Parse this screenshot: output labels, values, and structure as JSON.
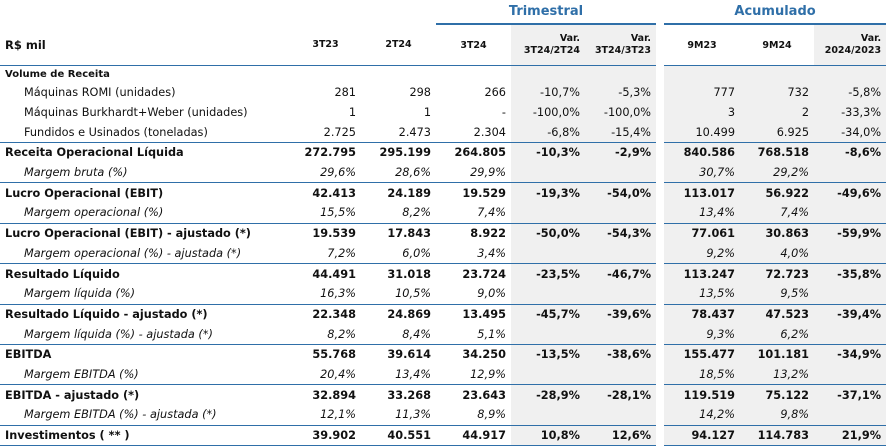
{
  "header": {
    "group_trimestral": "Trimestral",
    "group_acumulado": "Acumulado",
    "unit_label": "R$ mil",
    "columns": [
      "3T23",
      "2T24",
      "3T24",
      "Var. 3T24/2T24",
      "Var. 3T24/3T23",
      "9M23",
      "9M24",
      "Var. 2024/2023"
    ]
  },
  "section_title": "Volume de Receita",
  "rows": [
    {
      "label": "Máquinas ROMI (unidades)",
      "style": "normal",
      "values": [
        "281",
        "298",
        "266",
        "-10,7%",
        "-5,3%",
        "777",
        "732",
        "-5,8%"
      ]
    },
    {
      "label": "Máquinas Burkhardt+Weber (unidades)",
      "style": "normal",
      "values": [
        "1",
        "1",
        "-",
        "-100,0%",
        "-100,0%",
        "3",
        "2",
        "-33,3%"
      ]
    },
    {
      "label": "Fundidos e Usinados (toneladas)",
      "style": "normal",
      "values": [
        "2.725",
        "2.473",
        "2.304",
        "-6,8%",
        "-15,4%",
        "10.499",
        "6.925",
        "-34,0%"
      ]
    },
    {
      "label": "Receita Operacional Líquida",
      "style": "bold",
      "values": [
        "272.795",
        "295.199",
        "264.805",
        "-10,3%",
        "-2,9%",
        "840.586",
        "768.518",
        "-8,6%"
      ]
    },
    {
      "label": "Margem bruta (%)",
      "style": "italic",
      "values": [
        "29,6%",
        "28,6%",
        "29,9%",
        "",
        "",
        "30,7%",
        "29,2%",
        ""
      ]
    },
    {
      "label": "Lucro Operacional (EBIT)",
      "style": "bold",
      "values": [
        "42.413",
        "24.189",
        "19.529",
        "-19,3%",
        "-54,0%",
        "113.017",
        "56.922",
        "-49,6%"
      ]
    },
    {
      "label": "Margem operacional  (%)",
      "style": "italic",
      "values": [
        "15,5%",
        "8,2%",
        "7,4%",
        "",
        "",
        "13,4%",
        "7,4%",
        ""
      ]
    },
    {
      "label": "Lucro Operacional (EBIT) - ajustado (*)",
      "style": "bold",
      "values": [
        "19.539",
        "17.843",
        "8.922",
        "-50,0%",
        "-54,3%",
        "77.061",
        "30.863",
        "-59,9%"
      ]
    },
    {
      "label": "Margem operacional  (%) - ajustada (*)",
      "style": "italic",
      "values": [
        "7,2%",
        "6,0%",
        "3,4%",
        "",
        "",
        "9,2%",
        "4,0%",
        ""
      ]
    },
    {
      "label": "Resultado Líquido",
      "style": "bold",
      "values": [
        "44.491",
        "31.018",
        "23.724",
        "-23,5%",
        "-46,7%",
        "113.247",
        "72.723",
        "-35,8%"
      ]
    },
    {
      "label": "Margem líquida (%)",
      "style": "italic",
      "values": [
        "16,3%",
        "10,5%",
        "9,0%",
        "",
        "",
        "13,5%",
        "9,5%",
        ""
      ]
    },
    {
      "label": "Resultado Líquido - ajustado (*)",
      "style": "bold",
      "values": [
        "22.348",
        "24.869",
        "13.495",
        "-45,7%",
        "-39,6%",
        "78.437",
        "47.523",
        "-39,4%"
      ]
    },
    {
      "label": "Margem líquida (%) - ajustada (*)",
      "style": "italic",
      "values": [
        "8,2%",
        "8,4%",
        "5,1%",
        "",
        "",
        "9,3%",
        "6,2%",
        ""
      ]
    },
    {
      "label": "EBITDA",
      "style": "bold",
      "values": [
        "55.768",
        "39.614",
        "34.250",
        "-13,5%",
        "-38,6%",
        "155.477",
        "101.181",
        "-34,9%"
      ]
    },
    {
      "label": "Margem EBITDA (%)",
      "style": "italic",
      "values": [
        "20,4%",
        "13,4%",
        "12,9%",
        "",
        "",
        "18,5%",
        "13,2%",
        ""
      ]
    },
    {
      "label": "EBITDA - ajustado (*)",
      "style": "bold",
      "values": [
        "32.894",
        "33.268",
        "23.643",
        "-28,9%",
        "-28,1%",
        "119.519",
        "75.122",
        "-37,1%"
      ]
    },
    {
      "label": "Margem EBITDA (%) - ajustada (*)",
      "style": "italic",
      "values": [
        "12,1%",
        "11,3%",
        "8,9%",
        "",
        "",
        "14,2%",
        "9,8%",
        ""
      ]
    },
    {
      "label": "Investimentos ( ** )",
      "style": "bold",
      "values": [
        "39.902",
        "40.551",
        "44.917",
        "10,8%",
        "12,6%",
        "94.127",
        "114.783",
        "21,9%"
      ]
    }
  ]
}
